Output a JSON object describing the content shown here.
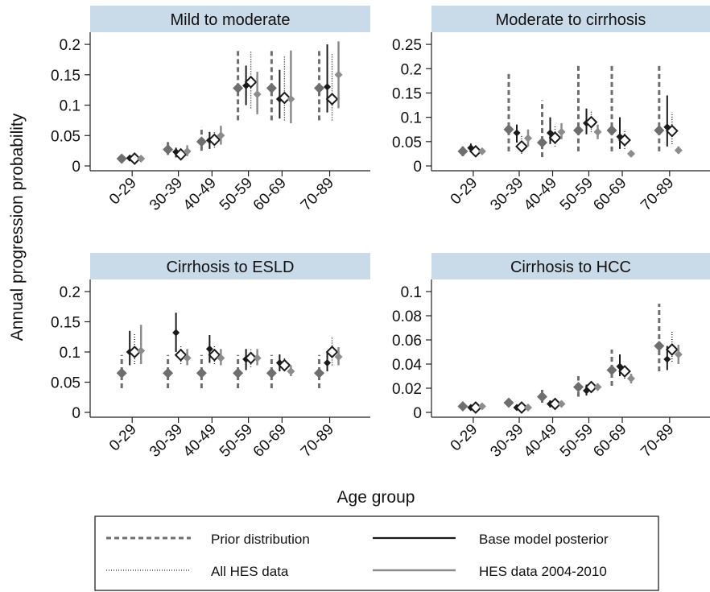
{
  "colors": {
    "prior": "#6e6e6e",
    "base": "#1a1a1a",
    "all_hes": "#8a8a8a",
    "hes_2004": "#8c8c8c",
    "strip": "#c9dbe8",
    "axis": "#222222"
  },
  "chart_data": {
    "type": "scatter",
    "ylabel": "Annual progression probability",
    "xlabel": "Age group",
    "categories": [
      "0-29",
      "30-39",
      "40-49",
      "50-59",
      "60-69",
      "70-89"
    ],
    "legend": {
      "placement": "bottom",
      "entries": [
        {
          "label": "Prior distribution",
          "style": "dashed"
        },
        {
          "label": "Base model posterior",
          "style": "solid"
        },
        {
          "label": "All HES data",
          "style": "dotted"
        },
        {
          "label": "HES data 2004-2010",
          "style": "solid-grey"
        }
      ]
    },
    "panels": [
      {
        "title": "Mild to moderate",
        "ylim": [
          0,
          0.22
        ],
        "yticks": [
          0,
          0.05,
          0.1,
          0.15,
          0.2
        ],
        "ytick_labels": [
          "0",
          "0.05",
          "0.1",
          "0.15",
          "0.2"
        ],
        "series": [
          {
            "key": "prior",
            "name": "Prior distribution",
            "y": [
              0.012,
              0.027,
              0.04,
              0.128,
              0.128,
              0.128
            ],
            "lo": [
              0.008,
              0.018,
              0.025,
              0.075,
              0.075,
              0.075
            ],
            "hi": [
              0.016,
              0.04,
              0.065,
              0.192,
              0.192,
              0.192
            ]
          },
          {
            "key": "base",
            "name": "Base model posterior",
            "y": [
              0.013,
              0.023,
              0.042,
              0.132,
              0.11,
              0.13
            ],
            "lo": [
              0.008,
              0.014,
              0.028,
              0.1,
              0.078,
              0.088
            ],
            "hi": [
              0.018,
              0.03,
              0.056,
              0.165,
              0.158,
              0.2
            ]
          },
          {
            "key": "all_hes",
            "name": "All HES data",
            "y": [
              0.012,
              0.019,
              0.043,
              0.138,
              0.112,
              0.11
            ],
            "lo": [
              0.008,
              0.012,
              0.03,
              0.095,
              0.075,
              0.075
            ],
            "hi": [
              0.016,
              0.028,
              0.058,
              0.188,
              0.18,
              0.185
            ]
          },
          {
            "key": "hes_2004",
            "name": "HES data 2004-2010",
            "y": [
              0.012,
              0.024,
              0.05,
              0.118,
              0.11,
              0.15
            ],
            "lo": [
              0.008,
              0.016,
              0.035,
              0.085,
              0.07,
              0.095
            ],
            "hi": [
              0.016,
              0.034,
              0.066,
              0.155,
              0.19,
              0.205
            ]
          }
        ]
      },
      {
        "title": "Moderate to cirrhosis",
        "ylim": [
          0,
          0.275
        ],
        "yticks": [
          0,
          0.05,
          0.1,
          0.15,
          0.2,
          0.25
        ],
        "ytick_labels": [
          "0",
          "0.05",
          "0.1",
          "0.15",
          "0.2",
          "0.25"
        ],
        "series": [
          {
            "key": "prior",
            "name": "Prior distribution",
            "y": [
              0.03,
              0.075,
              0.048,
              0.073,
              0.073,
              0.073
            ],
            "lo": [
              0.02,
              0.03,
              0.018,
              0.03,
              0.03,
              0.03
            ],
            "hi": [
              0.04,
              0.19,
              0.135,
              0.21,
              0.21,
              0.21
            ]
          },
          {
            "key": "base",
            "name": "Base model posterior",
            "y": [
              0.037,
              0.068,
              0.068,
              0.088,
              0.06,
              0.08
            ],
            "lo": [
              0.028,
              0.048,
              0.045,
              0.065,
              0.035,
              0.04
            ],
            "hi": [
              0.046,
              0.085,
              0.1,
              0.118,
              0.1,
              0.145
            ]
          },
          {
            "key": "all_hes",
            "name": "All HES data",
            "y": [
              0.03,
              0.04,
              0.058,
              0.09,
              0.053,
              0.072
            ],
            "lo": [
              0.024,
              0.025,
              0.04,
              0.07,
              0.035,
              0.045
            ],
            "hi": [
              0.036,
              0.065,
              0.085,
              0.112,
              0.075,
              0.11
            ]
          },
          {
            "key": "hes_2004",
            "name": "HES data 2004-2010",
            "y": [
              0.03,
              0.057,
              0.07,
              0.07,
              0.025,
              0.032
            ],
            "lo": [
              0.025,
              0.04,
              0.055,
              0.055,
              0.02,
              0.025
            ],
            "hi": [
              0.035,
              0.075,
              0.088,
              0.085,
              0.03,
              0.04
            ]
          }
        ]
      },
      {
        "title": "Cirrhosis to ESLD",
        "ylim": [
          0,
          0.22
        ],
        "yticks": [
          0,
          0.05,
          0.1,
          0.15,
          0.2
        ],
        "ytick_labels": [
          "0",
          "0.05",
          "0.1",
          "0.15",
          "0.2"
        ],
        "series": [
          {
            "key": "prior",
            "name": "Prior distribution",
            "y": [
              0.065,
              0.065,
              0.065,
              0.065,
              0.065,
              0.065
            ],
            "lo": [
              0.04,
              0.04,
              0.04,
              0.04,
              0.04,
              0.04
            ],
            "hi": [
              0.095,
              0.095,
              0.095,
              0.095,
              0.095,
              0.095
            ]
          },
          {
            "key": "base",
            "name": "Base model posterior",
            "y": [
              0.1,
              0.132,
              0.105,
              0.088,
              0.082,
              0.082
            ],
            "lo": [
              0.078,
              0.1,
              0.082,
              0.07,
              0.068,
              0.068
            ],
            "hi": [
              0.135,
              0.165,
              0.128,
              0.105,
              0.096,
              0.1
            ]
          },
          {
            "key": "all_hes",
            "name": "All HES data",
            "y": [
              0.1,
              0.095,
              0.095,
              0.09,
              0.078,
              0.1
            ],
            "lo": [
              0.08,
              0.08,
              0.08,
              0.075,
              0.068,
              0.078
            ],
            "hi": [
              0.13,
              0.112,
              0.112,
              0.105,
              0.09,
              0.125
            ]
          },
          {
            "key": "hes_2004",
            "name": "HES data 2004-2010",
            "y": [
              0.102,
              0.09,
              0.09,
              0.09,
              0.068,
              0.092
            ],
            "lo": [
              0.08,
              0.078,
              0.078,
              0.078,
              0.06,
              0.078
            ],
            "hi": [
              0.145,
              0.105,
              0.105,
              0.105,
              0.078,
              0.108
            ]
          }
        ]
      },
      {
        "title": "Cirrhosis to HCC",
        "ylim": [
          0,
          0.11
        ],
        "yticks": [
          0,
          0.02,
          0.04,
          0.06,
          0.08,
          0.1
        ],
        "ytick_labels": [
          "0",
          "0.02",
          "0.04",
          "0.06",
          "0.08",
          "0.1"
        ],
        "series": [
          {
            "key": "prior",
            "name": "Prior distribution",
            "y": [
              0.005,
              0.008,
              0.013,
              0.021,
              0.035,
              0.055
            ],
            "lo": [
              0.003,
              0.005,
              0.008,
              0.013,
              0.022,
              0.034
            ],
            "hi": [
              0.007,
              0.011,
              0.019,
              0.03,
              0.052,
              0.09
            ]
          },
          {
            "key": "base",
            "name": "Base model posterior",
            "y": [
              0.004,
              0.004,
              0.007,
              0.018,
              0.038,
              0.044
            ],
            "lo": [
              0.002,
              0.002,
              0.004,
              0.014,
              0.03,
              0.035
            ],
            "hi": [
              0.006,
              0.006,
              0.01,
              0.023,
              0.048,
              0.055
            ]
          },
          {
            "key": "all_hes",
            "name": "All HES data",
            "y": [
              0.004,
              0.004,
              0.007,
              0.021,
              0.034,
              0.052
            ],
            "lo": [
              0.003,
              0.003,
              0.005,
              0.017,
              0.028,
              0.042
            ],
            "hi": [
              0.005,
              0.005,
              0.009,
              0.025,
              0.04,
              0.068
            ]
          },
          {
            "key": "hes_2004",
            "name": "HES data 2004-2010",
            "y": [
              0.005,
              0.004,
              0.007,
              0.021,
              0.028,
              0.048
            ],
            "lo": [
              0.004,
              0.003,
              0.005,
              0.018,
              0.024,
              0.04
            ],
            "hi": [
              0.006,
              0.005,
              0.009,
              0.024,
              0.032,
              0.056
            ]
          }
        ]
      }
    ]
  }
}
